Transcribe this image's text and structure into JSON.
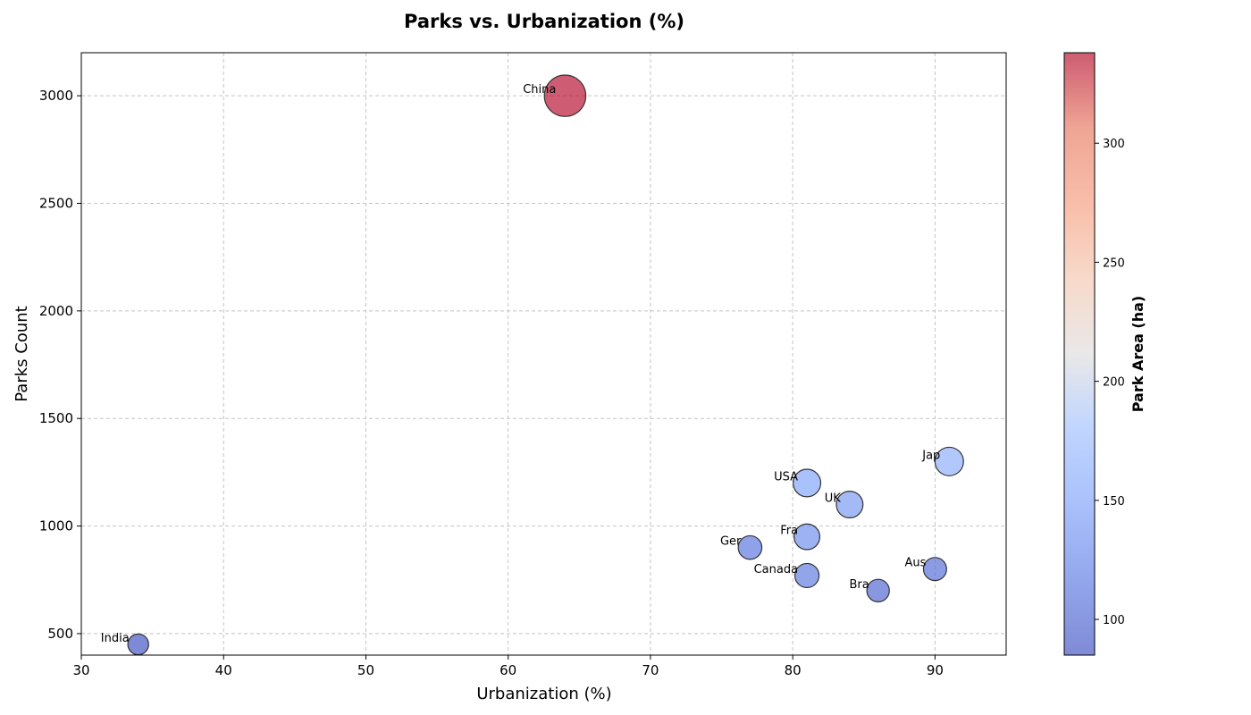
{
  "chart_data": {
    "type": "scatter",
    "title": "Parks vs. Urbanization (%)",
    "xlabel": "Urbanization (%)",
    "ylabel": "Parks Count",
    "colorbar_label": "Park Area (ha)",
    "xlim": [
      30,
      95
    ],
    "ylim": [
      400,
      3200
    ],
    "xticks": [
      30,
      40,
      50,
      60,
      70,
      80,
      90
    ],
    "yticks": [
      500,
      1000,
      1500,
      2000,
      2500,
      3000
    ],
    "colorbar_range": [
      85,
      338
    ],
    "colorbar_ticks": [
      100,
      150,
      200,
      250,
      300
    ],
    "colormap": "coolwarm",
    "grid": true,
    "points": [
      {
        "label": "China",
        "urbanization": 64,
        "parks": 3000,
        "area": 338
      },
      {
        "label": "Jap",
        "urbanization": 91,
        "parks": 1300,
        "area": 160
      },
      {
        "label": "USA",
        "urbanization": 81,
        "parks": 1200,
        "area": 150
      },
      {
        "label": "UK",
        "urbanization": 84,
        "parks": 1100,
        "area": 140
      },
      {
        "label": "Fra",
        "urbanization": 81,
        "parks": 950,
        "area": 130
      },
      {
        "label": "Ger",
        "urbanization": 77,
        "parks": 900,
        "area": 110
      },
      {
        "label": "Aus",
        "urbanization": 90,
        "parks": 800,
        "area": 105
      },
      {
        "label": "Canada",
        "urbanization": 81,
        "parks": 770,
        "area": 115
      },
      {
        "label": "Bra",
        "urbanization": 86,
        "parks": 700,
        "area": 100
      },
      {
        "label": "India",
        "urbanization": 34,
        "parks": 450,
        "area": 85
      }
    ]
  }
}
